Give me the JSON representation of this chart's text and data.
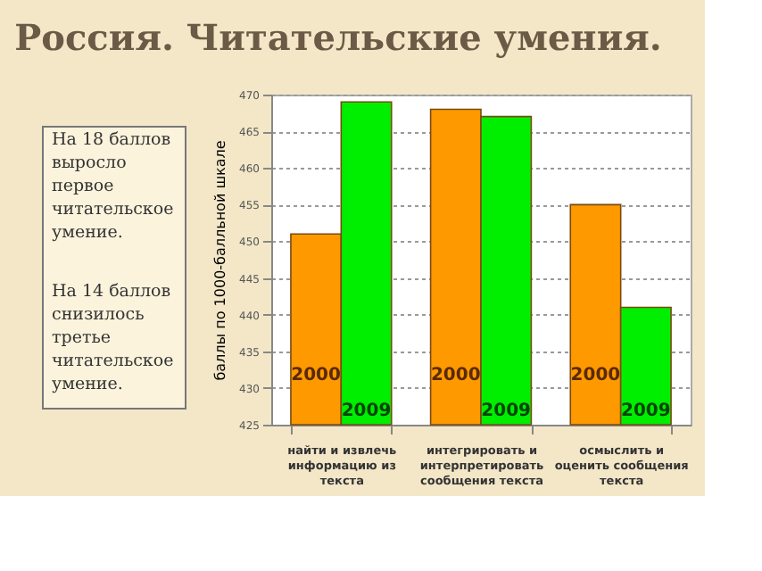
{
  "chart_data": {
    "type": "bar",
    "title": "Россия. Читательские умения.",
    "ylabel": "баллы по 1000-балльной шкале",
    "categories": [
      "найти и извлечь информацию из текста",
      "интегрировать и интерпретировать сообщения текста",
      "осмыслить и оценить сообщения текста"
    ],
    "series": [
      {
        "name": "2000",
        "color": "#ff9900",
        "values": [
          451,
          468,
          455
        ]
      },
      {
        "name": "2009",
        "color": "#00ee00",
        "values": [
          469,
          467,
          441
        ]
      }
    ],
    "ylim": [
      425,
      470
    ],
    "yticks": [
      425,
      430,
      435,
      440,
      445,
      450,
      455,
      460,
      465,
      470
    ],
    "grid": "y",
    "legend": false,
    "annotations": [
      "На 18 баллов выросло первое читательское умение.",
      "На 14 баллов снизилось третье читательское умение."
    ]
  }
}
